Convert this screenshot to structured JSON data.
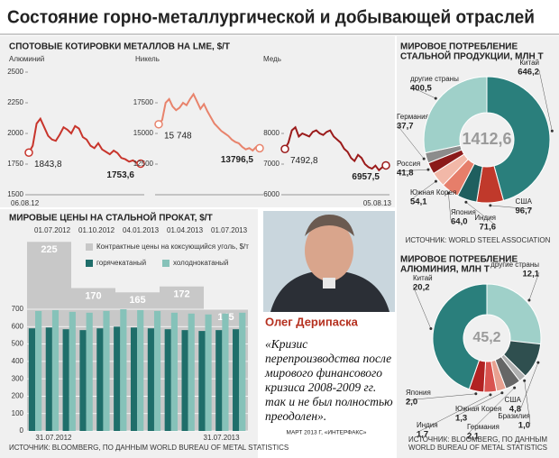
{
  "header": {
    "title": "Состояние горно-металлургической и добывающей отраслей",
    "metals_title": "СПОТОВЫЕ КОТИРОВКИ МЕТАЛЛОВ НА LME, $/Т"
  },
  "chart_data": [
    {
      "type": "line",
      "title": "Алюминий",
      "color": "#c8352c",
      "categories": [
        "06.08.12",
        null,
        null,
        null,
        null,
        null,
        null,
        null,
        null,
        null,
        null,
        null,
        null,
        null,
        null,
        null,
        null,
        null,
        null,
        null,
        null,
        null,
        null,
        null,
        null,
        null,
        null,
        null,
        null,
        null
      ],
      "values": [
        1843.8,
        1900,
        2080,
        2120,
        2050,
        1980,
        1950,
        1940,
        1990,
        2050,
        2030,
        2000,
        2060,
        2040,
        1970,
        1950,
        1900,
        1880,
        1920,
        1870,
        1850,
        1830,
        1860,
        1840,
        1800,
        1790,
        1770,
        1780,
        1760,
        1753.6
      ],
      "value_labels": [
        "1843,8",
        null,
        null,
        null,
        null,
        null,
        null,
        null,
        null,
        null,
        null,
        null,
        null,
        null,
        null,
        null,
        null,
        null,
        null,
        null,
        null,
        null,
        null,
        null,
        null,
        null,
        null,
        null,
        null,
        "1753,6"
      ],
      "ylim": [
        1500,
        2500
      ],
      "yticks": [
        1500,
        1750,
        2000,
        2250,
        2500
      ]
    },
    {
      "type": "line",
      "title": "Никель",
      "color": "#e8836c",
      "categories": [
        null,
        null,
        null,
        null,
        null,
        null,
        null,
        null,
        null,
        null,
        null,
        null,
        null,
        null,
        null,
        null,
        null,
        null,
        null,
        null,
        null,
        null,
        null,
        null,
        null,
        null,
        null,
        null,
        null,
        null
      ],
      "values": [
        15748,
        16100,
        17500,
        17800,
        17200,
        16900,
        17100,
        17500,
        17300,
        17800,
        18200,
        17600,
        17000,
        17400,
        16800,
        16300,
        15800,
        15500,
        15200,
        15000,
        14800,
        14500,
        14300,
        14200,
        13900,
        13700,
        13800,
        13600,
        13900,
        13796.5
      ],
      "value_labels": [
        "15 748",
        null,
        null,
        null,
        null,
        null,
        null,
        null,
        null,
        null,
        null,
        null,
        null,
        null,
        null,
        null,
        null,
        null,
        null,
        null,
        null,
        null,
        null,
        null,
        null,
        null,
        null,
        null,
        null,
        "13796,5"
      ],
      "ylim": [
        10000,
        20000
      ],
      "yticks": [
        12500,
        15000,
        17500
      ]
    },
    {
      "type": "line",
      "title": "Медь",
      "color": "#9b1b1b",
      "categories": [
        null,
        null,
        null,
        null,
        null,
        null,
        null,
        null,
        null,
        null,
        null,
        null,
        null,
        null,
        null,
        null,
        null,
        null,
        null,
        null,
        null,
        null,
        null,
        null,
        null,
        null,
        null,
        null,
        null,
        "05.08.13"
      ],
      "values": [
        7492.8,
        7700,
        8100,
        8200,
        7900,
        8000,
        7950,
        7900,
        8050,
        8100,
        8000,
        7950,
        8050,
        8100,
        7900,
        7800,
        7700,
        7500,
        7400,
        7200,
        7100,
        7300,
        7200,
        7000,
        6900,
        6850,
        6950,
        6800,
        6900,
        6957.5
      ],
      "value_labels": [
        "7492,8",
        null,
        null,
        null,
        null,
        null,
        null,
        null,
        null,
        null,
        null,
        null,
        null,
        null,
        null,
        null,
        null,
        null,
        null,
        null,
        null,
        null,
        null,
        null,
        null,
        null,
        null,
        null,
        null,
        "6957,5"
      ],
      "ylim": [
        6000,
        10000
      ],
      "yticks": [
        6000,
        7000,
        8000
      ]
    },
    {
      "type": "bar",
      "title": "МИРОВЫЕ ЦЕНЫ НА СТАЛЬНОЙ ПРОКАТ, $/Т",
      "categories": [
        "31.07.2012",
        null,
        null,
        null,
        null,
        null,
        null,
        null,
        null,
        null,
        null,
        null,
        "31.07.2013"
      ],
      "ylim": [
        0,
        700
      ],
      "yticks": [
        0,
        100,
        200,
        300,
        400,
        500,
        600,
        700
      ],
      "y2lim": [
        0,
        250
      ],
      "series": [
        {
          "name": "Контрактные цены на коксующийся уголь, $/т",
          "color": "#c8c8c8",
          "axis": "y2",
          "x": [
            "01.07.2012",
            "01.10.2012",
            "04.01.2013",
            "01.04.2013",
            "01.07.2013"
          ],
          "values": [
            225,
            170,
            165,
            172,
            145
          ]
        },
        {
          "name": "горячекатаный",
          "color": "#1f6e6a",
          "values": [
            590,
            595,
            585,
            580,
            590,
            600,
            595,
            590,
            585,
            580,
            575,
            580,
            585
          ]
        },
        {
          "name": "холоднокатаный",
          "color": "#86c2b9",
          "values": [
            690,
            695,
            685,
            680,
            690,
            700,
            695,
            690,
            680,
            675,
            670,
            675,
            680
          ]
        }
      ],
      "source": "ИСТОЧНИК: BLOOMBERG, ПО ДАННЫМ WORLD BUREAU OF METAL STATISTICS"
    },
    {
      "type": "pie",
      "title": [
        "МИРОВОЕ ПОТРЕБЛЕНИЕ",
        "СТАЛЬНОЙ ПРОДУКЦИИ, МЛН Т"
      ],
      "categories": [
        "Китай",
        "США",
        "Индия",
        "Япония",
        "Южная Корея",
        "Россия",
        "Германия",
        "другие страны"
      ],
      "values": [
        646.2,
        96.7,
        71.6,
        64.0,
        54.1,
        41.8,
        37.7,
        400.5
      ],
      "value_labels": [
        "646,2",
        "96,7",
        "71,6",
        "64,0",
        "54,1",
        "41,8",
        "37,7",
        "400,5"
      ],
      "colors": [
        "#2a7f7c",
        "#c0392b",
        "#1f5f5f",
        "#e67e6a",
        "#f2b8a8",
        "#8b1a1a",
        "#8c8c8c",
        "#9fd0c9"
      ],
      "total": {
        "value": 1412.6,
        "label": "1412,6"
      },
      "source": "ИСТОЧНИК: WORLD STEEL ASSOCIATION"
    },
    {
      "type": "pie",
      "title": [
        "МИРОВОЕ ПОТРЕБЛЕНИЕ",
        "АЛЮМИНИЯ, МЛН Т"
      ],
      "categories": [
        "другие страны",
        "США",
        "Бразилия",
        "Германия",
        "Южная Корея",
        "Индия",
        "Япония",
        "Китай"
      ],
      "values": [
        12.1,
        4.8,
        1.0,
        2.1,
        1.3,
        1.7,
        2.0,
        20.2
      ],
      "value_labels": [
        "12,1",
        "4,8",
        "1,0",
        "2,1",
        "1,3",
        "1,7",
        "2,0",
        "20,2"
      ],
      "colors": [
        "#9fd0c9",
        "#2f4f4f",
        "#b0b0b0",
        "#666666",
        "#e8a090",
        "#d9534f",
        "#b22222",
        "#2a7f7c"
      ],
      "total": {
        "value": 45.2,
        "label": "45,2"
      },
      "source": [
        "ИСТОЧНИК: BLOOMBERG, ПО ДАННЫМ",
        "WORLD BUREAU OF METAL STATISTICS"
      ]
    }
  ],
  "quote": {
    "name": "Олег Дерипаска",
    "lines": [
      "«Кризис",
      "перепроизводства после",
      "мирового финансового",
      "кризиса 2008-2009 гг.",
      "так и не был полностью",
      "преодолен»."
    ],
    "source": "МАРТ 2013 Г, «ИНТЕРФАКС»"
  }
}
